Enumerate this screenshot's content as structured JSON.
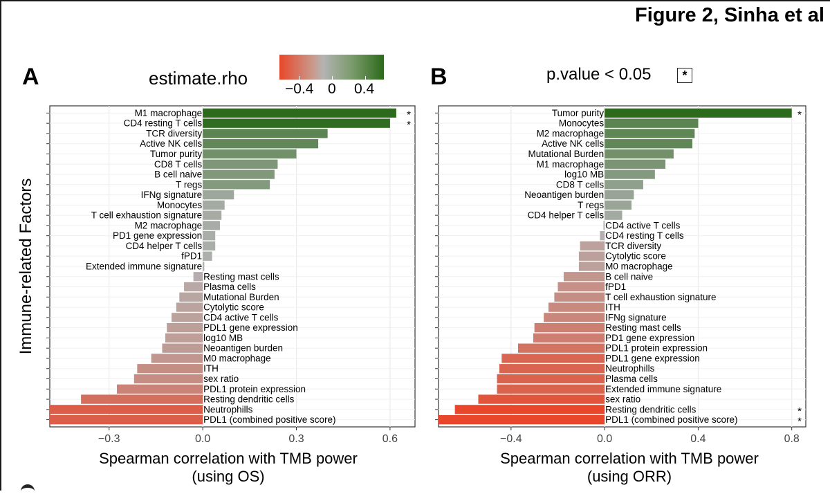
{
  "figure_title": "Figure 2, Sinha et al",
  "panel_a_label": "A",
  "panel_b_label": "B",
  "legend": {
    "title": "estimate.rho",
    "ticks": [
      "−0.4",
      "0",
      "0.4"
    ],
    "pvalue_label": "p.value < 0.05",
    "star_symbol": "*",
    "colors": {
      "negative": "#e8472b",
      "neutral": "#b3b3b3",
      "positive": "#2c6a1c"
    }
  },
  "y_axis_label": "Immune-related Factors",
  "chart_data": [
    {
      "type": "bar",
      "orientation": "horizontal",
      "panel": "A",
      "xlabel": [
        "Spearman correlation with TMB power",
        "(using OS)"
      ],
      "xlim": [
        -0.49,
        0.68
      ],
      "xticks": [
        -0.3,
        0.0,
        0.3,
        0.6
      ],
      "xtick_labels": [
        "−0.3",
        "0.0",
        "0.3",
        "0.6"
      ],
      "grid": true,
      "categories": [
        "M1 macrophage",
        "CD4 resting T cells",
        "TCR diversity",
        "Active NK cells",
        "Tumor purity",
        "CD8 T cells",
        "B cell naive",
        "T regs",
        "IFNg signature",
        "Monocytes",
        "T cell exhaustion signature",
        "M2 macrophage",
        "PD1 gene expression",
        "CD4 helper T cells",
        "fPD1",
        "Extended immune signature",
        "Resting mast cells",
        "Plasma cells",
        "Mutational Burden",
        "Cytolytic score",
        "CD4 active T cells",
        "PDL1 gene expression",
        "log10 MB",
        "Neoantigen burden",
        "M0 macrophage",
        "ITH",
        "sex ratio",
        "PDL1 protein expression",
        "Resting dendritic cells",
        "Neutrophills",
        "PDL1 (combined positive score)"
      ],
      "values": [
        0.62,
        0.6,
        0.4,
        0.37,
        0.3,
        0.24,
        0.23,
        0.215,
        0.1,
        0.07,
        0.06,
        0.055,
        0.04,
        0.04,
        0.03,
        0.005,
        -0.03,
        -0.06,
        -0.075,
        -0.085,
        -0.1,
        -0.115,
        -0.12,
        -0.13,
        -0.165,
        -0.21,
        -0.22,
        -0.275,
        -0.39,
        -0.49,
        -0.49
      ],
      "significant": [
        "M1 macrophage",
        "CD4 resting T cells"
      ]
    },
    {
      "type": "bar",
      "orientation": "horizontal",
      "panel": "B",
      "xlabel": [
        "Spearman correlation with TMB power",
        "(using ORR)"
      ],
      "xlim": [
        -0.71,
        0.86
      ],
      "xticks": [
        -0.4,
        0.0,
        0.4,
        0.8
      ],
      "xtick_labels": [
        "−0.4",
        "0.0",
        "0.4",
        "0.8"
      ],
      "grid": true,
      "categories": [
        "Tumor purity",
        "Monocytes",
        "M2 macrophage",
        "Active NK cells",
        "Mutational Burden",
        "M1 macrophage",
        "log10 MB",
        "CD8 T cells",
        "Neoantigen burden",
        "T regs",
        "CD4 helper T cells",
        "CD4 active T cells",
        "CD4 resting T cells",
        "TCR diversity",
        "Cytolytic score",
        "M0 macrophage",
        "B cell naive",
        "fPD1",
        "T cell exhaustion signature",
        "ITH",
        "IFNg signature",
        "Resting mast cells",
        "PD1 gene expression",
        "PDL1 protein expression",
        "PDL1 gene expression",
        "Neutrophills",
        "Plasma cells",
        "Extended immune signature",
        "sex ratio",
        "Resting dendritic cells",
        "PDL1 (combined positive score)"
      ],
      "values": [
        0.8,
        0.4,
        0.385,
        0.375,
        0.295,
        0.26,
        0.215,
        0.165,
        0.125,
        0.115,
        0.075,
        -0.005,
        -0.02,
        -0.105,
        -0.11,
        -0.11,
        -0.175,
        -0.2,
        -0.215,
        -0.24,
        -0.26,
        -0.3,
        -0.305,
        -0.37,
        -0.44,
        -0.45,
        -0.46,
        -0.46,
        -0.54,
        -0.64,
        -0.71
      ],
      "significant": [
        "Tumor purity",
        "Resting dendritic cells",
        "PDL1 (combined positive score)"
      ]
    }
  ]
}
